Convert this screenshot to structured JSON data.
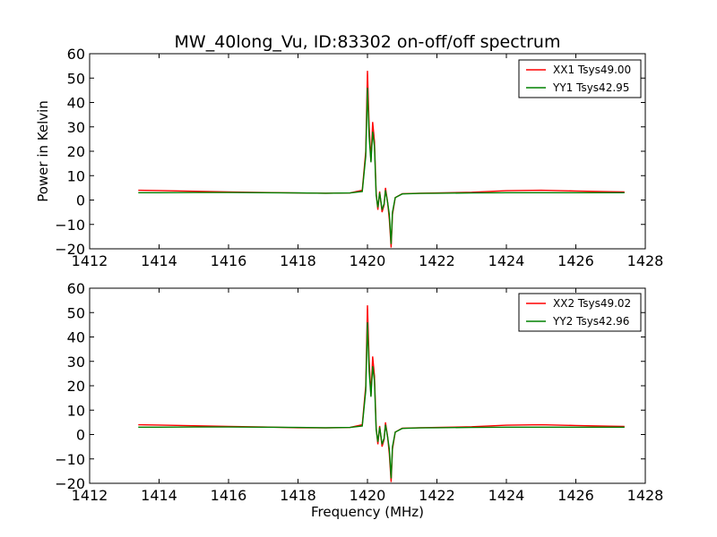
{
  "figure": {
    "title": "MW_40long_Vu, ID:83302 on-off/off spectrum"
  },
  "chart_data": [
    {
      "type": "line",
      "title": "MW_40long_Vu, ID:83302 on-off/off spectrum",
      "xlabel": "",
      "ylabel": "Power in Kelvin",
      "xlim": [
        1412,
        1428
      ],
      "ylim": [
        -20,
        60
      ],
      "xticks": [
        "1412",
        "1414",
        "1416",
        "1418",
        "1420",
        "1422",
        "1424",
        "1426",
        "1428"
      ],
      "yticks": [
        "−20",
        "−10",
        "0",
        "10",
        "20",
        "30",
        "40",
        "50",
        "60"
      ],
      "grid": false,
      "legend_position": "top-right",
      "series": [
        {
          "name": "XX1 Tsys49.00",
          "color": "#ff0000",
          "x": [
            1413.4,
            1414.0,
            1415.0,
            1416.0,
            1417.0,
            1418.0,
            1418.8,
            1419.5,
            1419.85,
            1419.95,
            1420.0,
            1420.05,
            1420.1,
            1420.15,
            1420.2,
            1420.25,
            1420.3,
            1420.35,
            1420.42,
            1420.48,
            1420.52,
            1420.58,
            1420.63,
            1420.68,
            1420.72,
            1420.8,
            1421.0,
            1421.5,
            1422.0,
            1423.0,
            1424.0,
            1425.0,
            1426.0,
            1427.0,
            1427.4
          ],
          "y": [
            4.0,
            3.9,
            3.6,
            3.3,
            3.1,
            2.9,
            2.8,
            2.9,
            4.0,
            20.0,
            53.0,
            30.0,
            16.0,
            32.0,
            24.0,
            3.0,
            -4.0,
            3.5,
            -5.0,
            -2.0,
            5.0,
            -1.0,
            -8.0,
            -19.5,
            -6.0,
            1.0,
            2.6,
            2.8,
            2.9,
            3.2,
            3.8,
            4.0,
            3.7,
            3.4,
            3.3
          ]
        },
        {
          "name": "YY1 Tsys42.95",
          "color": "#008000",
          "x": [
            1413.4,
            1414.0,
            1415.0,
            1416.0,
            1417.0,
            1418.0,
            1418.8,
            1419.5,
            1419.85,
            1419.95,
            1420.0,
            1420.05,
            1420.1,
            1420.15,
            1420.2,
            1420.25,
            1420.3,
            1420.35,
            1420.42,
            1420.48,
            1420.52,
            1420.58,
            1420.63,
            1420.68,
            1420.72,
            1420.8,
            1421.0,
            1421.5,
            1422.0,
            1423.0,
            1424.0,
            1425.0,
            1426.0,
            1427.0,
            1427.4
          ],
          "y": [
            3.0,
            3.0,
            3.1,
            3.1,
            3.0,
            2.9,
            2.8,
            2.9,
            3.5,
            18.0,
            46.0,
            26.0,
            15.5,
            28.0,
            22.0,
            2.0,
            -3.0,
            3.0,
            -4.0,
            -1.5,
            4.0,
            -1.0,
            -6.0,
            -18.0,
            -5.0,
            1.0,
            2.5,
            2.7,
            2.8,
            2.9,
            3.0,
            3.0,
            3.0,
            3.0,
            3.0
          ]
        }
      ]
    },
    {
      "type": "line",
      "title": "",
      "xlabel": "Frequency (MHz)",
      "ylabel": "",
      "xlim": [
        1412,
        1428
      ],
      "ylim": [
        -20,
        60
      ],
      "xticks": [
        "1412",
        "1414",
        "1416",
        "1418",
        "1420",
        "1422",
        "1424",
        "1426",
        "1428"
      ],
      "yticks": [
        "−20",
        "−10",
        "0",
        "10",
        "20",
        "30",
        "40",
        "50",
        "60"
      ],
      "grid": false,
      "legend_position": "top-right",
      "series": [
        {
          "name": "XX2 Tsys49.02",
          "color": "#ff0000",
          "x": [
            1413.4,
            1414.0,
            1415.0,
            1416.0,
            1417.0,
            1418.0,
            1418.8,
            1419.5,
            1419.85,
            1419.95,
            1420.0,
            1420.05,
            1420.1,
            1420.15,
            1420.2,
            1420.25,
            1420.3,
            1420.35,
            1420.42,
            1420.48,
            1420.52,
            1420.58,
            1420.63,
            1420.68,
            1420.72,
            1420.8,
            1421.0,
            1421.5,
            1422.0,
            1423.0,
            1424.0,
            1425.0,
            1426.0,
            1427.0,
            1427.4
          ],
          "y": [
            4.0,
            3.9,
            3.6,
            3.3,
            3.1,
            2.8,
            2.7,
            2.9,
            4.0,
            20.0,
            53.0,
            30.0,
            16.0,
            32.0,
            24.0,
            3.0,
            -4.0,
            3.5,
            -5.0,
            -2.0,
            5.0,
            -1.0,
            -8.0,
            -19.5,
            -6.0,
            1.0,
            2.6,
            2.8,
            2.9,
            3.2,
            3.8,
            4.0,
            3.7,
            3.4,
            3.3
          ]
        },
        {
          "name": "YY2 Tsys42.96",
          "color": "#008000",
          "x": [
            1413.4,
            1414.0,
            1415.0,
            1416.0,
            1417.0,
            1418.0,
            1418.8,
            1419.5,
            1419.85,
            1419.95,
            1420.0,
            1420.05,
            1420.1,
            1420.15,
            1420.2,
            1420.25,
            1420.3,
            1420.35,
            1420.42,
            1420.48,
            1420.52,
            1420.58,
            1420.63,
            1420.68,
            1420.72,
            1420.8,
            1421.0,
            1421.5,
            1422.0,
            1423.0,
            1424.0,
            1425.0,
            1426.0,
            1427.0,
            1427.4
          ],
          "y": [
            3.0,
            3.0,
            3.1,
            3.1,
            3.0,
            2.9,
            2.8,
            2.9,
            3.5,
            18.0,
            46.0,
            26.0,
            15.5,
            28.0,
            22.0,
            2.0,
            -3.0,
            3.0,
            -4.0,
            -1.5,
            4.0,
            -1.0,
            -6.0,
            -18.0,
            -5.0,
            1.0,
            2.5,
            2.7,
            2.8,
            2.9,
            3.0,
            3.0,
            3.0,
            3.0,
            3.0
          ]
        }
      ]
    }
  ]
}
